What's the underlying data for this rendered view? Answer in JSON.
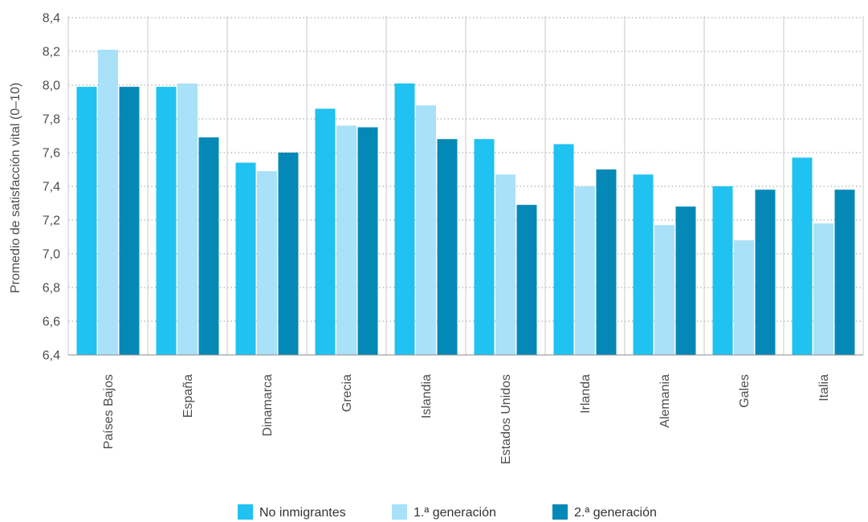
{
  "chart_data": {
    "type": "bar",
    "ylabel": "Promedio de satisfacción vital (0–10)",
    "xlabel": "",
    "ylim": [
      6.4,
      8.4
    ],
    "ytick_step": 0.2,
    "ytick_labels": [
      "6,4",
      "6,6",
      "6,8",
      "7,0",
      "7,2",
      "7,4",
      "7,6",
      "7,8",
      "8,0",
      "8,2",
      "8,4"
    ],
    "grid": true,
    "legend_position": "bottom",
    "categories": [
      "Países Bajos",
      "España",
      "Dinamarca",
      "Grecia",
      "Islandia",
      "Estados Unidos",
      "Irlanda",
      "Alemania",
      "Gales",
      "Italia"
    ],
    "series": [
      {
        "name": "No inmigrantes",
        "color": "#1fc2f0",
        "values": [
          7.99,
          7.99,
          7.54,
          7.86,
          8.01,
          7.68,
          7.65,
          7.47,
          7.4,
          7.57
        ]
      },
      {
        "name": "1.ª generación",
        "color": "#a9e1f8",
        "values": [
          8.21,
          8.01,
          7.49,
          7.76,
          7.88,
          7.47,
          7.4,
          7.17,
          7.08,
          7.18
        ]
      },
      {
        "name": "2.ª generación",
        "color": "#0489b7",
        "values": [
          7.99,
          7.69,
          7.6,
          7.75,
          7.68,
          7.29,
          7.5,
          7.28,
          7.38,
          7.38
        ]
      }
    ]
  }
}
